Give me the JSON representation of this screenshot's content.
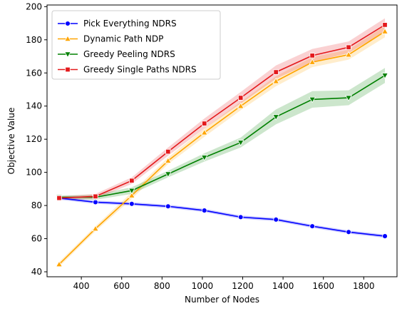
{
  "chart_data": {
    "type": "line",
    "title": "",
    "xlabel": "Number of Nodes",
    "ylabel": "Objective Value",
    "xlim": [
      230,
      1965
    ],
    "ylim": [
      37,
      201
    ],
    "xticks": [
      400,
      600,
      800,
      1000,
      1200,
      1400,
      1600,
      1800
    ],
    "yticks": [
      40,
      60,
      80,
      100,
      120,
      140,
      160,
      180,
      200
    ],
    "grid": false,
    "legend_position": "upper-left",
    "x": [
      290,
      470,
      650,
      830,
      1010,
      1190,
      1365,
      1545,
      1725,
      1905
    ],
    "series": [
      {
        "name": "Pick Everything NDRS",
        "color": "#0000ff",
        "marker": "circle",
        "values": [
          84.5,
          82,
          81,
          79.5,
          77,
          73,
          71.5,
          67.5,
          64,
          61.5
        ],
        "band": [
          1.0,
          1.0,
          1.0,
          1.0,
          1.0,
          1.0,
          1.0,
          1.0,
          1.0,
          1.0
        ]
      },
      {
        "name": "Dynamic Path NDP",
        "color": "#ffa500",
        "marker": "triangle-up",
        "values": [
          44.5,
          66,
          86,
          107,
          124,
          140,
          155,
          166.5,
          171,
          185
        ],
        "band": [
          1.5,
          1.5,
          2.0,
          2.0,
          2.5,
          2.5,
          3.0,
          3.0,
          3.0,
          3.5
        ]
      },
      {
        "name": "Greedy Peeling NDRS",
        "color": "#008000",
        "marker": "triangle-down",
        "values": [
          85,
          85,
          89,
          99,
          109,
          118,
          133.5,
          144,
          145,
          158.5
        ],
        "band": [
          1.0,
          1.5,
          2.0,
          2.0,
          2.5,
          3.0,
          4.5,
          5.0,
          4.5,
          4.5
        ]
      },
      {
        "name": "Greedy Single Paths NDRS",
        "color": "#e41a1c",
        "marker": "square",
        "values": [
          84.5,
          85.5,
          95,
          112.5,
          129.5,
          145,
          160.5,
          170.5,
          175.5,
          189
        ],
        "band": [
          1.0,
          1.5,
          2.0,
          2.5,
          3.0,
          3.5,
          4.0,
          4.0,
          3.5,
          4.0
        ]
      }
    ]
  }
}
